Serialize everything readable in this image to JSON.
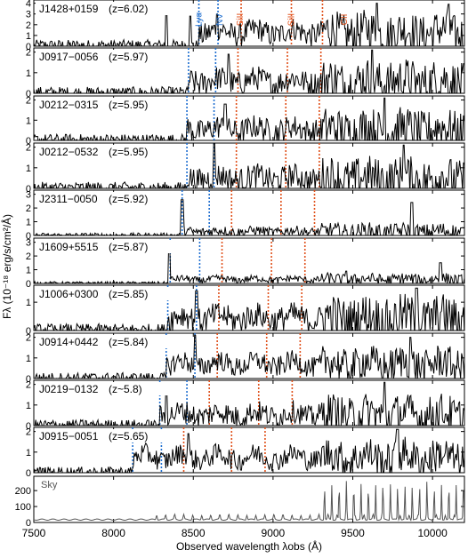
{
  "chart_data": {
    "type": "line",
    "xlabel": "Observed wavelength λobs (Å)",
    "ylabel": "Fλ (10⁻¹⁸ erg/s/cm²/Å)",
    "xlim": [
      7500,
      10200
    ],
    "x_ticks": [
      7500,
      8000,
      8500,
      9000,
      9500,
      10000
    ],
    "line_labels": [
      {
        "text": "Lyα",
        "x": 8530,
        "color": "#1f6fd0"
      },
      {
        "text": "NV",
        "x": 8660,
        "color": "#1f6fd0"
      },
      {
        "text": "SiII",
        "x": 8790,
        "color": "#e0501a"
      },
      {
        "text": "SiII",
        "x": 9110,
        "color": "#e0501a"
      },
      {
        "text": "CII",
        "x": 9440,
        "color": "#e0501a"
      }
    ],
    "colors": {
      "blue_lines": "#1f6fd0",
      "orange_lines": "#e0501a",
      "spectrum": "#000000",
      "sky": "#555555"
    },
    "panels": [
      {
        "label": "J1428+0159",
        "z": "(z=6.02)",
        "ylim": [
          0,
          4.3
        ],
        "yticks": [
          0,
          1,
          2,
          3,
          4
        ],
        "blue": [
          8535,
          8655
        ],
        "orange": [
          8800,
          9115,
          9310
        ],
        "level": 1.3,
        "noise": 1.1,
        "jump": 8530,
        "spikes": [
          [
            8330,
            3.5
          ],
          [
            8480,
            2.8
          ],
          [
            8650,
            3.0
          ],
          [
            9650,
            4.0
          ],
          [
            10100,
            3.9
          ]
        ]
      },
      {
        "label": "J0917−0056",
        "z": "(z=5.97)",
        "ylim": [
          0,
          2.2
        ],
        "yticks": [
          0,
          1,
          2
        ],
        "blue": [
          8470,
          8640
        ],
        "orange": [
          8780,
          9090,
          9300
        ],
        "level": 0.6,
        "noise": 0.6,
        "jump": 8470,
        "spikes": [
          [
            8720,
            1.9
          ],
          [
            9620,
            2.1
          ]
        ]
      },
      {
        "label": "J0212−0315",
        "z": "(z=5.95)",
        "ylim": [
          0,
          2.2
        ],
        "yticks": [
          0,
          1,
          2
        ],
        "blue": [
          8460,
          8630
        ],
        "orange": [
          8770,
          9080,
          9290
        ],
        "level": 0.55,
        "noise": 0.6,
        "jump": 8460,
        "spikes": [
          [
            8700,
            1.8
          ],
          [
            9700,
            2.1
          ]
        ]
      },
      {
        "label": "J0212−0532",
        "z": "(z=5.95)",
        "ylim": [
          0,
          2.2
        ],
        "yticks": [
          0,
          1,
          2
        ],
        "blue": [
          8460,
          8630
        ],
        "orange": [
          8770,
          9080,
          9290
        ],
        "level": 0.5,
        "noise": 0.6,
        "jump": 8460,
        "spikes": [
          [
            8630,
            2.2
          ],
          [
            9820,
            2.1
          ]
        ]
      },
      {
        "label": "J2311−0050",
        "z": "(z=5.92)",
        "ylim": [
          0,
          3.3
        ],
        "yticks": [
          0,
          1,
          2,
          3
        ],
        "blue": [
          8430,
          8600
        ],
        "orange": [
          8740,
          9050,
          9260
        ],
        "level": 0.3,
        "noise": 0.35,
        "jump": 8430,
        "spikes": [
          [
            8430,
            2.6
          ],
          [
            9870,
            2.4
          ]
        ]
      },
      {
        "label": "J1609+5515",
        "z": "(z=5.87)",
        "ylim": [
          0,
          3.3
        ],
        "yticks": [
          0,
          1,
          2,
          3
        ],
        "blue": [
          8355,
          8540
        ],
        "orange": [
          8680,
          8990,
          9200
        ],
        "level": 0.3,
        "noise": 0.25,
        "jump": 8355,
        "spikes": [
          [
            8350,
            3.0
          ],
          [
            9460,
            0.9
          ],
          [
            10050,
            1.5
          ]
        ]
      },
      {
        "label": "J1006+0300",
        "z": "(z=5.85)",
        "ylim": [
          0,
          1.6
        ],
        "yticks": [
          0,
          1
        ],
        "blue": [
          8340,
          8520
        ],
        "orange": [
          8660,
          8970,
          9180
        ],
        "level": 0.45,
        "noise": 0.45,
        "jump": 8340,
        "spikes": [
          [
            8520,
            1.4
          ],
          [
            9900,
            1.5
          ]
        ]
      },
      {
        "label": "J0914+0442",
        "z": "(z=5.84)",
        "ylim": [
          0,
          2.2
        ],
        "yticks": [
          0,
          1,
          2
        ],
        "blue": [
          8330,
          8510
        ],
        "orange": [
          8650,
          8960,
          9170
        ],
        "level": 0.7,
        "noise": 0.5,
        "jump": 8330,
        "spikes": [
          [
            8510,
            2.1
          ],
          [
            9860,
            2.0
          ]
        ]
      },
      {
        "label": "J0219−0132",
        "z": "(z~5.8)",
        "ylim": [
          0,
          2.2
        ],
        "yticks": [
          0,
          1,
          2
        ],
        "blue": [
          8290,
          8460
        ],
        "orange": [
          8600,
          8910,
          9120
        ],
        "level": 0.55,
        "noise": 0.55,
        "jump": 8290,
        "spikes": [
          [
            8330,
            1.9
          ],
          [
            9700,
            2.1
          ]
        ]
      },
      {
        "label": "J0915−0051",
        "z": "(z=5.65)",
        "ylim": [
          0,
          2.2
        ],
        "yticks": [
          0,
          1,
          2
        ],
        "blue": [
          8120,
          8300
        ],
        "orange": [
          8440,
          8740,
          8950
        ],
        "level": 0.75,
        "noise": 0.5,
        "jump": 8120,
        "spikes": [
          [
            8470,
            1.9
          ],
          [
            9780,
            2.1
          ]
        ]
      }
    ],
    "sky": {
      "label": "Sky",
      "ylim": [
        0,
        290
      ],
      "yticks": [
        0,
        100,
        200
      ]
    }
  }
}
